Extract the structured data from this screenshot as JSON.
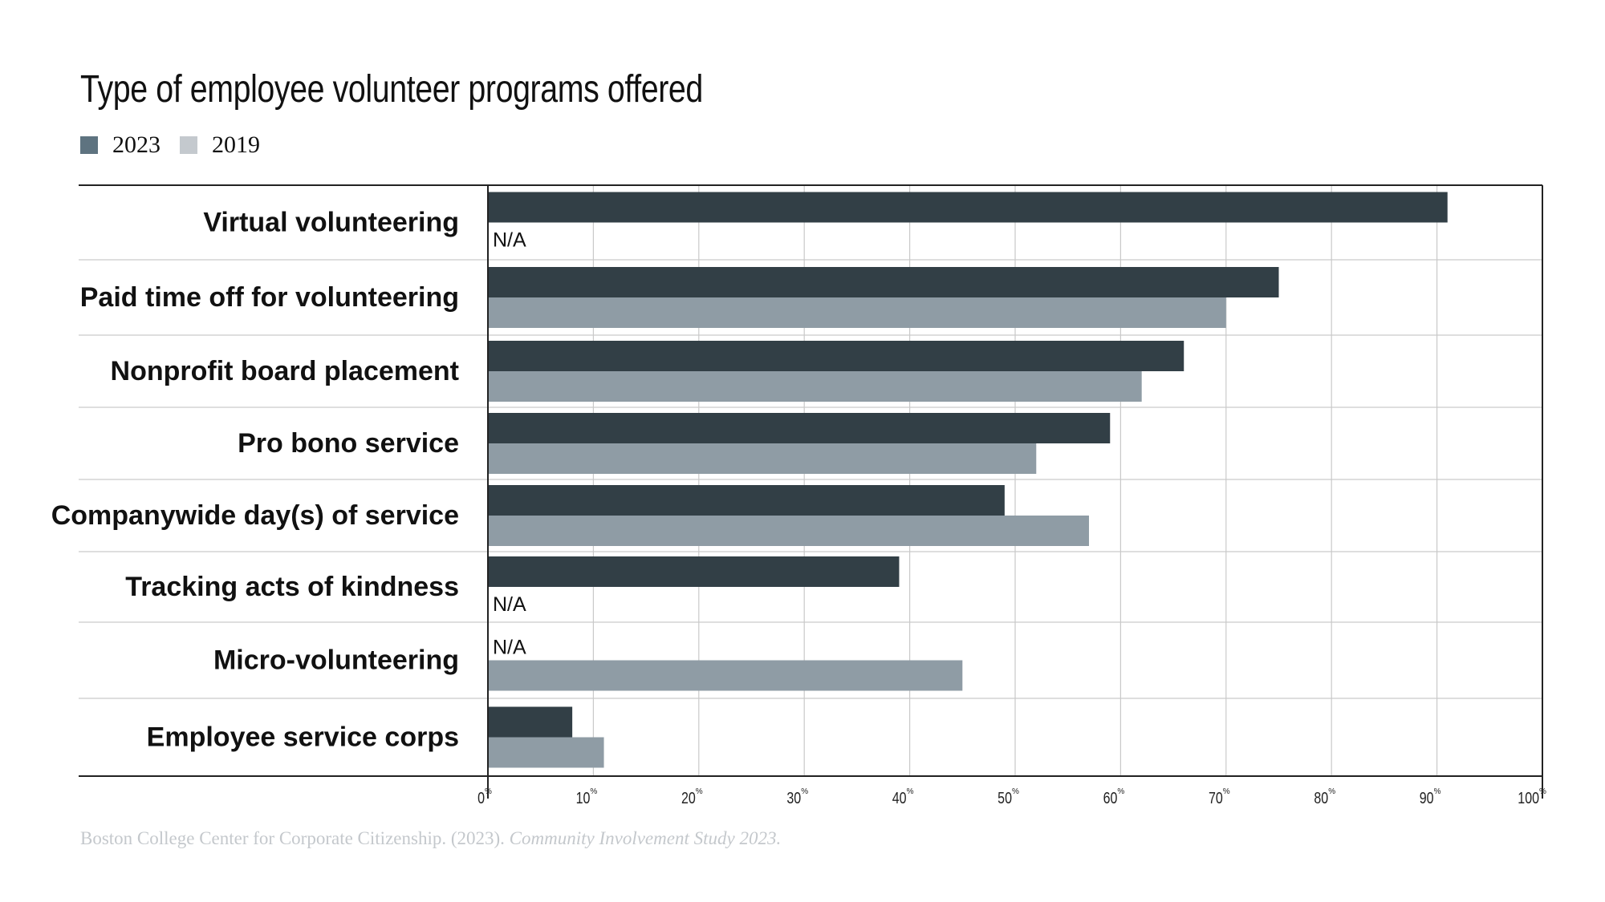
{
  "title": "Type of employee volunteer programs offered",
  "legend": [
    {
      "label": "2023",
      "color": "#5e7380"
    },
    {
      "label": "2019",
      "color": "#c4c9ce"
    }
  ],
  "source": {
    "text": "Boston College Center for Corporate Citizenship. (2023). ",
    "italic": "Community Involvement Study 2023."
  },
  "chart_data": {
    "type": "bar",
    "orientation": "horizontal",
    "title": "Type of employee volunteer programs offered",
    "xlabel": "",
    "ylabel": "",
    "xlim": [
      0,
      100
    ],
    "grid": true,
    "legend_position": "top-left",
    "categories": [
      "Virtual volunteering",
      "Paid time off for volunteering",
      "Nonprofit board placement",
      "Pro bono service",
      "Companywide day(s) of service",
      "Tracking acts of kindness",
      "Micro-volunteering",
      "Employee service corps"
    ],
    "series": [
      {
        "name": "2023",
        "color": "#323f46",
        "values": [
          91,
          75,
          66,
          59,
          49,
          39,
          null,
          8
        ]
      },
      {
        "name": "2019",
        "color": "#8f9ca5",
        "values": [
          null,
          70,
          62,
          52,
          57,
          null,
          45,
          11
        ]
      }
    ],
    "missing_label": "N/A",
    "x_ticks": [
      "0",
      "10",
      "20",
      "30",
      "40",
      "50",
      "60",
      "70",
      "80",
      "90",
      "100"
    ],
    "tick_suffix": "%"
  }
}
